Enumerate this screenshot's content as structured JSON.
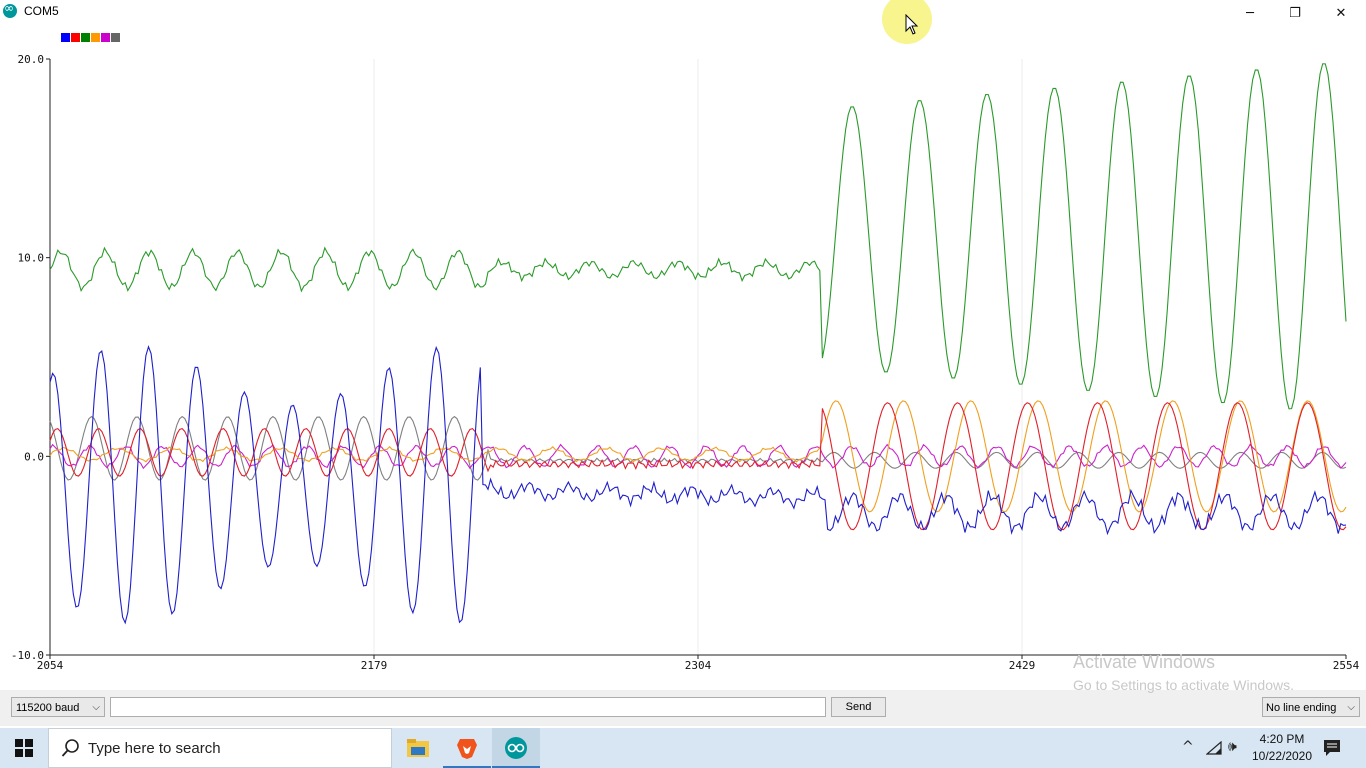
{
  "window": {
    "title": "COM5",
    "minimize_glyph": "─",
    "maximize_glyph": "❐",
    "close_glyph": "✕"
  },
  "legend": {
    "colors": [
      "#0000ff",
      "#ff0000",
      "#008000",
      "#ff9900",
      "#cc00cc",
      "#666666"
    ]
  },
  "chart_data": {
    "type": "line",
    "title": "",
    "xlabel": "",
    "ylabel": "",
    "xlim": [
      2054,
      2554
    ],
    "ylim": [
      -10.0,
      20.0
    ],
    "x_ticks": [
      "2054",
      "2179",
      "2304",
      "2429",
      "2554"
    ],
    "y_ticks": [
      "20.0",
      "10.0",
      "0.0",
      "-10.0"
    ],
    "grid": true,
    "legend_position": "top-left",
    "series": [
      {
        "color": "#1f1fcc",
        "description": "blue oscillating ±5–7 then near -2 then -2 to -4"
      },
      {
        "color": "#e0202a",
        "description": "red small oscillation around 0, larger ±3 later"
      },
      {
        "color": "#2a9a2a",
        "description": "green around 9–10 then large oscillations 3–20"
      },
      {
        "color": "#f0a020",
        "description": "orange near 0, later ±3"
      },
      {
        "color": "#cc22cc",
        "description": "magenta near 0"
      },
      {
        "color": "#808080",
        "description": "gray ±2 early then near 0"
      }
    ]
  },
  "controls": {
    "baud": "115200 baud",
    "send": "Send",
    "line_ending": "No line ending",
    "chevron": "⌵"
  },
  "watermark": {
    "line1": "Activate Windows",
    "line2": "Go to Settings to activate Windows."
  },
  "taskbar": {
    "search_placeholder": "Type here to search",
    "time": "4:20 PM",
    "date": "10/22/2020",
    "tray_up_glyph": "^",
    "volume_glyph": "🕪"
  }
}
